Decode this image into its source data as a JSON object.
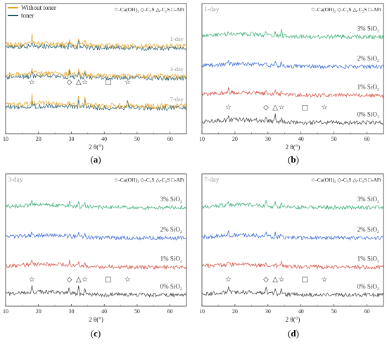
{
  "figure": {
    "x_axis_title": "2 θ(°)",
    "x_range": [
      10,
      65
    ],
    "x_ticks": [
      10,
      20,
      30,
      40,
      50,
      60
    ]
  },
  "chart_data": [
    {
      "panel": "a",
      "panel_label": "(a)",
      "type": "line",
      "xlabel": "2 θ(°)",
      "xlim": [
        10,
        65
      ],
      "legend": {
        "placement": "top-left",
        "entries": [
          {
            "name": "Without toner",
            "color": "#E8A01C"
          },
          {
            "name": "toner",
            "color": "#1B5A6B"
          }
        ]
      },
      "marker_legend": "☆-Ca(OH)₂ ◇-C₃S △-C₂S □-AFt",
      "series": [
        {
          "name": "Without toner",
          "age": "1-day",
          "color": "#E8A01C"
        },
        {
          "name": "toner",
          "age": "1-day",
          "color": "#1B5A6B"
        },
        {
          "name": "Without toner",
          "age": "3-day",
          "color": "#E8A01C"
        },
        {
          "name": "toner",
          "age": "3-day",
          "color": "#1B5A6B"
        },
        {
          "name": "Without toner",
          "age": "7-day",
          "color": "#E8A01C"
        },
        {
          "name": "toner",
          "age": "7-day",
          "color": "#1B5A6B"
        }
      ],
      "trace_labels": [
        "1-day",
        "3-day",
        "7-day"
      ],
      "peak_markers": [
        {
          "phase": "Ca(OH)₂",
          "symbol": "☆",
          "x": 18.0
        },
        {
          "phase": "C₃S",
          "symbol": "◇",
          "x": 29.4
        },
        {
          "phase": "C₂S",
          "symbol": "△",
          "x": 32.2
        },
        {
          "phase": "Ca(OH)₂",
          "symbol": "☆",
          "x": 34.1
        },
        {
          "phase": "AFt",
          "symbol": "□",
          "x": 41.2
        },
        {
          "phase": "Ca(OH)₂",
          "symbol": "☆",
          "x": 47.1
        }
      ]
    },
    {
      "panel": "b",
      "panel_label": "(b)",
      "type": "line",
      "title": "1-day",
      "xlabel": "2 θ(°)",
      "xlim": [
        10,
        65
      ],
      "marker_legend": "☆-Ca(OH)₂ ◇-C₃S △-C₂S □-AFt",
      "series": [
        {
          "name": "3% SiO₂",
          "color": "#2DAA6C"
        },
        {
          "name": "2% SiO₂",
          "color": "#2C5FD3"
        },
        {
          "name": "1% SiO₂",
          "color": "#D24A3A"
        },
        {
          "name": "0% SiO₂",
          "color": "#3A3A3A"
        }
      ],
      "peak_markers": [
        {
          "phase": "Ca(OH)₂",
          "symbol": "☆",
          "x": 18.0
        },
        {
          "phase": "C₃S",
          "symbol": "◇",
          "x": 29.4
        },
        {
          "phase": "C₂S",
          "symbol": "△",
          "x": 32.2
        },
        {
          "phase": "Ca(OH)₂",
          "symbol": "☆",
          "x": 34.1
        },
        {
          "phase": "AFt",
          "symbol": "□",
          "x": 41.2
        },
        {
          "phase": "Ca(OH)₂",
          "symbol": "☆",
          "x": 47.1
        }
      ]
    },
    {
      "panel": "c",
      "panel_label": "(c)",
      "type": "line",
      "title": "3-day",
      "xlabel": "2 θ(°)",
      "xlim": [
        10,
        65
      ],
      "marker_legend": "☆-Ca(OH)₂ ◇-C₃S △-C₂S □-AFt",
      "series": [
        {
          "name": "3% SiO₂",
          "color": "#2DAA6C"
        },
        {
          "name": "2% SiO₂",
          "color": "#2C5FD3"
        },
        {
          "name": "1% SiO₂",
          "color": "#D24A3A"
        },
        {
          "name": "0% SiO₂",
          "color": "#3A3A3A"
        }
      ],
      "peak_markers": [
        {
          "phase": "Ca(OH)₂",
          "symbol": "☆",
          "x": 18.0
        },
        {
          "phase": "C₃S",
          "symbol": "◇",
          "x": 29.4
        },
        {
          "phase": "C₂S",
          "symbol": "△",
          "x": 32.2
        },
        {
          "phase": "Ca(OH)₂",
          "symbol": "☆",
          "x": 34.1
        },
        {
          "phase": "AFt",
          "symbol": "□",
          "x": 41.2
        },
        {
          "phase": "Ca(OH)₂",
          "symbol": "☆",
          "x": 47.1
        }
      ]
    },
    {
      "panel": "d",
      "panel_label": "(d)",
      "type": "line",
      "title": "7-day",
      "xlabel": "2 θ(°)",
      "xlim": [
        10,
        65
      ],
      "marker_legend": "☆-Ca(OH)₂ ◇-C₃S △-C₂S □-AFt",
      "series": [
        {
          "name": "3% SiO₂",
          "color": "#2DAA6C"
        },
        {
          "name": "2% SiO₂",
          "color": "#2C5FD3"
        },
        {
          "name": "1% SiO₂",
          "color": "#D24A3A"
        },
        {
          "name": "0% SiO₂",
          "color": "#3A3A3A"
        }
      ],
      "peak_markers": [
        {
          "phase": "Ca(OH)₂",
          "symbol": "☆",
          "x": 18.0
        },
        {
          "phase": "C₃S",
          "symbol": "◇",
          "x": 29.4
        },
        {
          "phase": "C₂S",
          "symbol": "△",
          "x": 32.2
        },
        {
          "phase": "Ca(OH)₂",
          "symbol": "☆",
          "x": 34.1
        },
        {
          "phase": "AFt",
          "symbol": "□",
          "x": 41.2
        },
        {
          "phase": "Ca(OH)₂",
          "symbol": "☆",
          "x": 47.1
        }
      ]
    }
  ]
}
